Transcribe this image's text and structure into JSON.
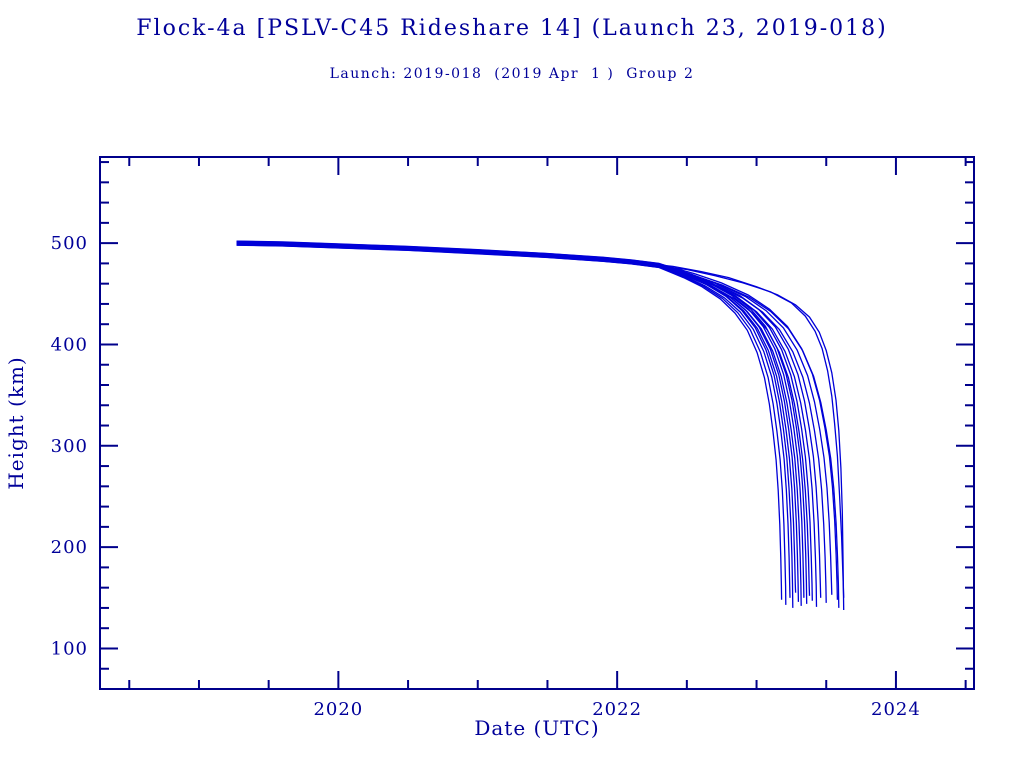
{
  "chart_data": {
    "type": "line",
    "title": "Flock-4a [PSLV-C45 Rideshare 14] (Launch 23, 2019-018)",
    "subtitle": "Launch: 2019-018  (2019 Apr  1 )  Group 2",
    "xlabel": "Date (UTC)",
    "ylabel": "Height (km)",
    "x_range": [
      2018.29,
      2024.56
    ],
    "y_range": [
      60,
      585
    ],
    "grid": false,
    "legend": "none",
    "x_ticks": {
      "major": [
        2020,
        2022,
        2024
      ],
      "labels": [
        "2020",
        "2022",
        "2024"
      ],
      "minor": [
        2018.5,
        2019,
        2019.5,
        2020.5,
        2021,
        2021.5,
        2022.5,
        2023,
        2023.5,
        2024.5
      ]
    },
    "y_ticks": {
      "major": [
        100,
        200,
        300,
        400,
        500
      ],
      "labels": [
        "100",
        "200",
        "300",
        "400",
        "500"
      ],
      "minor": [
        80,
        120,
        140,
        160,
        180,
        220,
        240,
        260,
        280,
        320,
        340,
        360,
        380,
        420,
        440,
        460,
        480,
        520,
        540,
        560,
        580
      ]
    },
    "colors": {
      "background": "#ffffff",
      "axis": "#00008b",
      "text": "#000099",
      "line": "#0000d8"
    },
    "plateau": [
      [
        2019.27,
        500.0
      ],
      [
        2019.6,
        499.2
      ],
      [
        2020.0,
        497.2
      ],
      [
        2020.5,
        494.8
      ],
      [
        2021.0,
        491.5
      ],
      [
        2021.5,
        487.8
      ],
      [
        2021.9,
        484.0
      ],
      [
        2022.1,
        481.5
      ],
      [
        2022.3,
        478.0
      ]
    ],
    "tail_start": 2022.3,
    "decay_profile": [
      [
        0.1,
        473
      ],
      [
        0.2,
        468
      ],
      [
        0.35,
        459
      ],
      [
        0.5,
        447
      ],
      [
        0.62,
        433
      ],
      [
        0.72,
        416
      ],
      [
        0.8,
        394
      ],
      [
        0.86,
        369
      ],
      [
        0.9,
        343
      ],
      [
        0.93,
        316
      ],
      [
        0.955,
        288
      ],
      [
        0.972,
        258
      ],
      [
        0.985,
        224
      ],
      [
        0.993,
        191
      ],
      [
        0.998,
        163
      ],
      [
        1.0,
        145
      ]
    ],
    "series": [
      {
        "id": "s01",
        "end_date": 2023.18,
        "end_height": 148,
        "offset_km": -2.0
      },
      {
        "id": "s02",
        "end_date": 2023.21,
        "end_height": 143,
        "offset_km": -1.5
      },
      {
        "id": "s03",
        "end_date": 2023.24,
        "end_height": 150,
        "offset_km": -1.0
      },
      {
        "id": "s04",
        "end_date": 2023.26,
        "end_height": 140,
        "offset_km": 0.5
      },
      {
        "id": "s05",
        "end_date": 2023.28,
        "end_height": 155,
        "offset_km": 0.0
      },
      {
        "id": "s06",
        "end_date": 2023.3,
        "end_height": 146,
        "offset_km": 1.0
      },
      {
        "id": "s07",
        "end_date": 2023.32,
        "end_height": 142,
        "offset_km": -0.5
      },
      {
        "id": "s08",
        "end_date": 2023.34,
        "end_height": 150,
        "offset_km": 1.5
      },
      {
        "id": "s09",
        "end_date": 2023.36,
        "end_height": 144,
        "offset_km": 2.0
      },
      {
        "id": "s10",
        "end_date": 2023.38,
        "end_height": 152,
        "offset_km": -1.8
      },
      {
        "id": "s11",
        "end_date": 2023.4,
        "end_height": 147,
        "offset_km": 0.8
      },
      {
        "id": "s12",
        "end_date": 2023.43,
        "end_height": 141,
        "offset_km": -0.8
      },
      {
        "id": "s13",
        "end_date": 2023.46,
        "end_height": 150,
        "offset_km": 1.2
      },
      {
        "id": "s14",
        "end_date": 2023.5,
        "end_height": 145,
        "offset_km": -1.2
      },
      {
        "id": "s15",
        "end_date": 2023.54,
        "end_height": 153,
        "offset_km": 0.3
      },
      {
        "id": "s16",
        "end_date": 2023.58,
        "end_height": 148,
        "offset_km": 1.8
      },
      {
        "id": "s17",
        "end_date": 2023.59,
        "end_height": 140,
        "offset_km": -0.3
      },
      {
        "id": "s18",
        "offset_km": -0.5,
        "points": [
          [
            2022.5,
            474
          ],
          [
            2022.7,
            468
          ],
          [
            2022.9,
            461
          ],
          [
            2023.1,
            452
          ],
          [
            2023.25,
            441
          ],
          [
            2023.35,
            428
          ],
          [
            2023.42,
            413
          ],
          [
            2023.47,
            396
          ],
          [
            2023.51,
            374
          ],
          [
            2023.54,
            349
          ],
          [
            2023.56,
            322
          ],
          [
            2023.58,
            290
          ],
          [
            2023.595,
            252
          ],
          [
            2023.61,
            210
          ],
          [
            2023.62,
            170
          ],
          [
            2023.625,
            150
          ]
        ]
      },
      {
        "id": "s19",
        "offset_km": 0.5,
        "points": [
          [
            2022.4,
            477
          ],
          [
            2022.6,
            472
          ],
          [
            2022.8,
            466
          ],
          [
            2023.0,
            457
          ],
          [
            2023.15,
            449
          ],
          [
            2023.28,
            439
          ],
          [
            2023.38,
            427
          ],
          [
            2023.45,
            412
          ],
          [
            2023.5,
            394
          ],
          [
            2023.54,
            372
          ],
          [
            2023.57,
            345
          ],
          [
            2023.59,
            315
          ],
          [
            2023.605,
            278
          ],
          [
            2023.615,
            235
          ],
          [
            2023.62,
            190
          ],
          [
            2023.625,
            138
          ]
        ]
      }
    ]
  }
}
